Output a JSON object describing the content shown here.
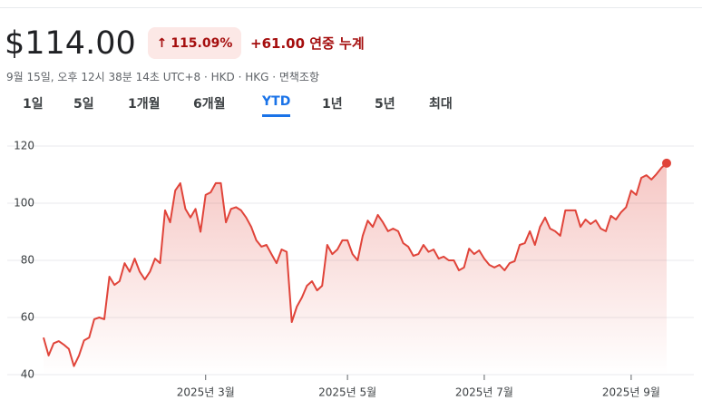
{
  "header": {
    "price": "$114.00",
    "change_pct": "115.09%",
    "change_abs": "+61.00 연중 누계",
    "subtitle": "9월 15일, 오후 12시 38분 14초 UTC+8 · HKD · HKG · 면책조항"
  },
  "tabs": {
    "items": [
      "1일",
      "5일",
      "1개월",
      "6개월",
      "YTD",
      "1년",
      "5년",
      "최대"
    ],
    "active": 4
  },
  "chart_data": {
    "type": "line",
    "color": "#e0443a",
    "grid": true,
    "values": [
      53,
      46.7,
      51,
      51.7,
      50.5,
      49,
      43,
      46.7,
      52,
      53,
      59.4,
      60,
      59.4,
      74.3,
      71.4,
      72.7,
      79,
      76,
      80.6,
      76,
      73.3,
      76,
      80.6,
      79,
      97.5,
      93.3,
      104.4,
      107,
      98,
      95,
      98,
      90,
      102.9,
      103.8,
      107,
      107,
      93.3,
      98,
      98.6,
      97.5,
      95,
      91.7,
      87,
      84.8,
      85.4,
      82.2,
      79,
      83.8,
      83,
      58.4,
      63.8,
      67,
      71.1,
      72.7,
      69.5,
      71.1,
      85.4,
      82.2,
      83.8,
      87,
      87,
      82.2,
      80,
      88.6,
      93.9,
      91.7,
      95.9,
      93.3,
      90.2,
      91.1,
      90.2,
      86,
      84.8,
      81.6,
      82.2,
      85.4,
      83,
      83.8,
      80.6,
      81.3,
      80,
      80,
      76.5,
      77.5,
      84.1,
      82.2,
      83.5,
      80.6,
      78.4,
      77.5,
      78.4,
      76.5,
      79,
      79.7,
      85.4,
      86,
      90.2,
      85.4,
      91.7,
      95,
      91.1,
      90.2,
      88.6,
      97.5,
      97.5,
      97.5,
      91.7,
      94.3,
      92.7,
      94,
      91.1,
      90.2,
      95.6,
      94.3,
      96.8,
      98.6,
      104.4,
      102.9,
      108.9,
      109.8,
      108.3,
      110.2,
      112.4,
      114
    ],
    "xlim": [
      0,
      123
    ],
    "xticks": [
      {
        "value": 32,
        "label": "2025년 3월"
      },
      {
        "value": 60,
        "label": "2025년 5월"
      },
      {
        "value": 87,
        "label": "2025년 7월"
      },
      {
        "value": 116,
        "label": "2025년 9월"
      }
    ],
    "ylim": [
      40,
      120
    ],
    "yticks": [
      40,
      60,
      80,
      100,
      120
    ]
  }
}
